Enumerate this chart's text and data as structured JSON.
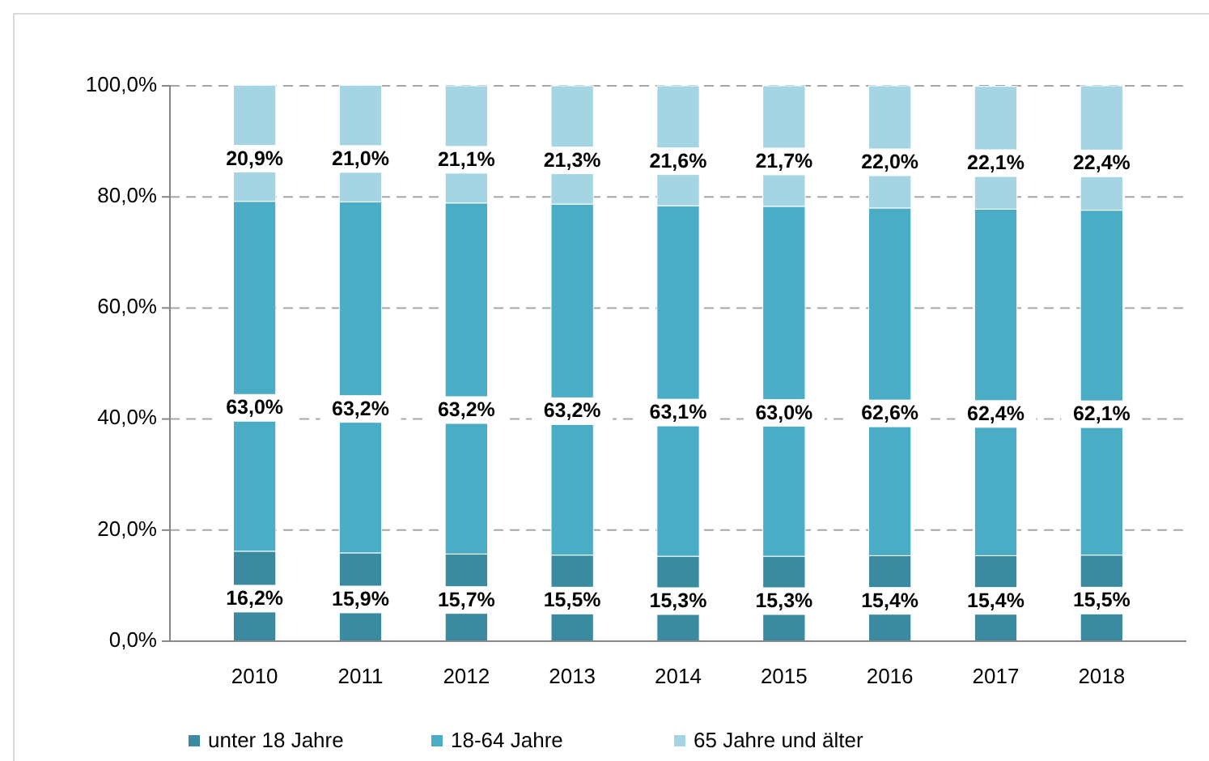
{
  "chart_data": {
    "type": "bar",
    "stacked": true,
    "categories": [
      "2010",
      "2011",
      "2012",
      "2013",
      "2014",
      "2015",
      "2016",
      "2017",
      "2018"
    ],
    "series": [
      {
        "name": "unter 18 Jahre",
        "color": "#3a8ba0",
        "values": [
          16.2,
          15.9,
          15.7,
          15.5,
          15.3,
          15.3,
          15.4,
          15.4,
          15.5
        ],
        "value_labels": [
          "16,2%",
          "15,9%",
          "15,7%",
          "15,5%",
          "15,3%",
          "15,3%",
          "15,4%",
          "15,4%",
          "15,5%"
        ]
      },
      {
        "name": "18-64 Jahre",
        "color": "#4bacc6",
        "values": [
          63.0,
          63.2,
          63.2,
          63.2,
          63.1,
          63.0,
          62.6,
          62.4,
          62.1
        ],
        "value_labels": [
          "63,0%",
          "63,2%",
          "63,2%",
          "63,2%",
          "63,1%",
          "63,0%",
          "62,6%",
          "62,4%",
          "62,1%"
        ]
      },
      {
        "name": "65 Jahre und älter",
        "color": "#a5d5e2",
        "values": [
          20.9,
          21.0,
          21.1,
          21.3,
          21.6,
          21.7,
          22.0,
          22.1,
          22.4
        ],
        "value_labels": [
          "20,9%",
          "21,0%",
          "21,1%",
          "21,3%",
          "21,6%",
          "21,7%",
          "22,0%",
          "22,1%",
          "22,4%"
        ]
      }
    ],
    "ylim": [
      0,
      100
    ],
    "yticks": [
      {
        "value": 0,
        "label": "0,0%"
      },
      {
        "value": 20,
        "label": "20,0%"
      },
      {
        "value": 40,
        "label": "40,0%"
      },
      {
        "value": 60,
        "label": "60,0%"
      },
      {
        "value": 80,
        "label": "80,0%"
      },
      {
        "value": 100,
        "label": "100,0%"
      }
    ],
    "grid": "y",
    "legend": "bottom"
  }
}
